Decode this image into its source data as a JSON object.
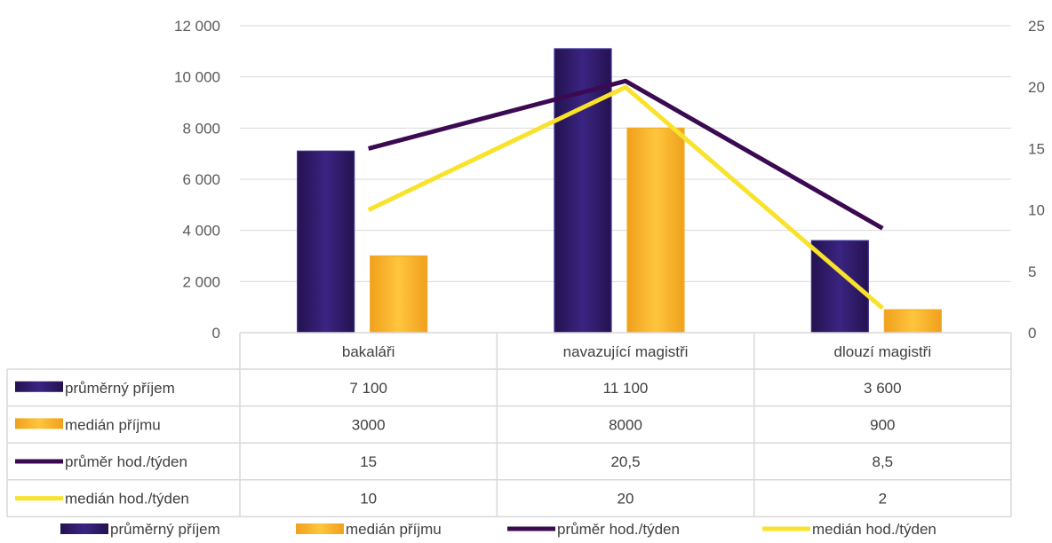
{
  "chart_data": {
    "type": "bar",
    "categories": [
      "bakaláři",
      "navazující magistři",
      "dlouzí magistři"
    ],
    "y_left": {
      "ticks": [
        "0",
        "2 000",
        "4 000",
        "6 000",
        "8 000",
        "10 000",
        "12 000"
      ],
      "range": [
        0,
        12000
      ]
    },
    "y_right": {
      "ticks": [
        "0",
        "5",
        "10",
        "15",
        "20",
        "25"
      ],
      "range": [
        0,
        25
      ]
    },
    "grid": true,
    "legend_position": "bottom",
    "series": [
      {
        "name": "průměrný příjem",
        "kind": "bar",
        "axis": "left",
        "color": "#2e1a6b",
        "values": [
          7100,
          11100,
          3600
        ],
        "labels": [
          "7 100",
          "11 100",
          "3 600"
        ]
      },
      {
        "name": "medián příjmu",
        "kind": "bar",
        "axis": "left",
        "color": "#f7b52b",
        "values": [
          3000,
          8000,
          900
        ],
        "labels": [
          "3000",
          "8000",
          "900"
        ]
      },
      {
        "name": "průměr hod./týden",
        "kind": "line",
        "axis": "right",
        "color": "#3b0a52",
        "values": [
          15,
          20.5,
          8.5
        ],
        "labels": [
          "15",
          "20,5",
          "8,5"
        ]
      },
      {
        "name": "medián hod./týden",
        "kind": "line",
        "axis": "right",
        "color": "#f9e22b",
        "values": [
          10,
          20,
          2
        ],
        "labels": [
          "10",
          "20",
          "2"
        ]
      }
    ]
  }
}
